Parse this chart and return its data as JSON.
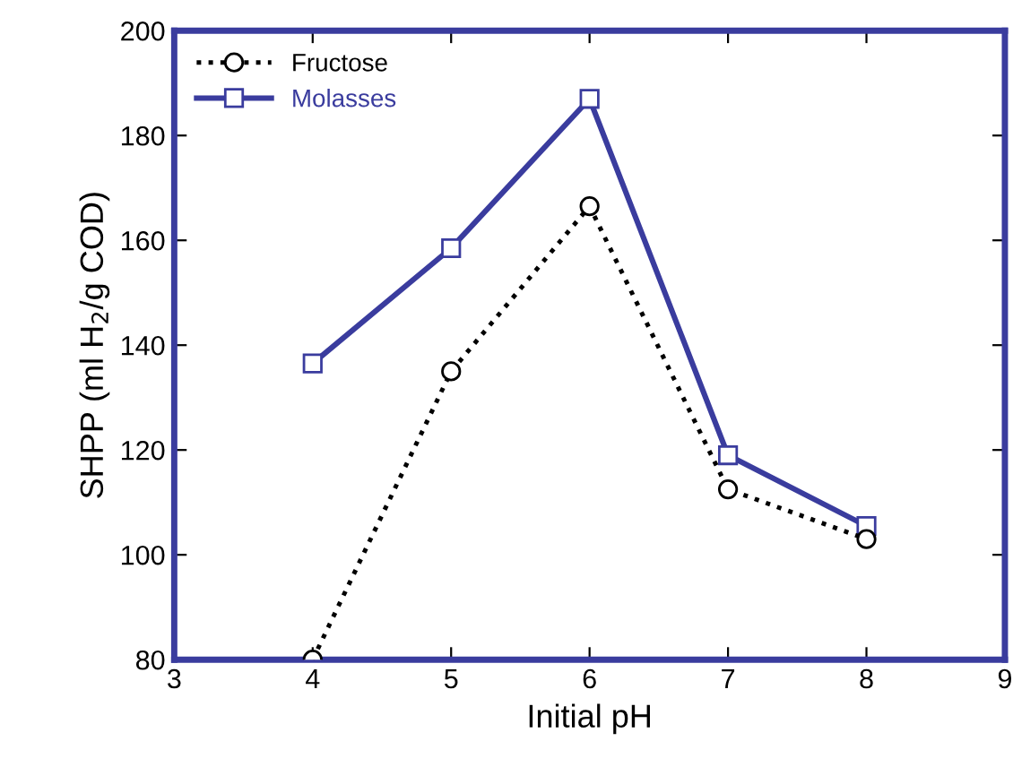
{
  "chart_data": {
    "type": "line",
    "xlabel": "Initial pH",
    "ylabel": "SHPP (ml H$_{2}$/g COD)",
    "xlim": [
      3,
      9
    ],
    "xticks": [
      3,
      4,
      5,
      6,
      7,
      8,
      9
    ],
    "ylim": [
      80,
      200
    ],
    "yticks": [
      80,
      100,
      120,
      140,
      160,
      180,
      200
    ],
    "grid": false,
    "legend": "top left",
    "series": [
      {
        "name": "Fructose",
        "color": "#000000",
        "marker": "circle",
        "line_style": "dotted",
        "x": [
          4,
          5,
          6,
          7,
          8
        ],
        "values": [
          80,
          135,
          166.5,
          112.5,
          103
        ]
      },
      {
        "name": "Molasses",
        "color": "#3a3c9e",
        "marker": "square",
        "line_style": "solid",
        "x": [
          4,
          5,
          6,
          7,
          8
        ],
        "values": [
          136.5,
          158.5,
          187,
          119,
          105.5
        ]
      }
    ]
  }
}
